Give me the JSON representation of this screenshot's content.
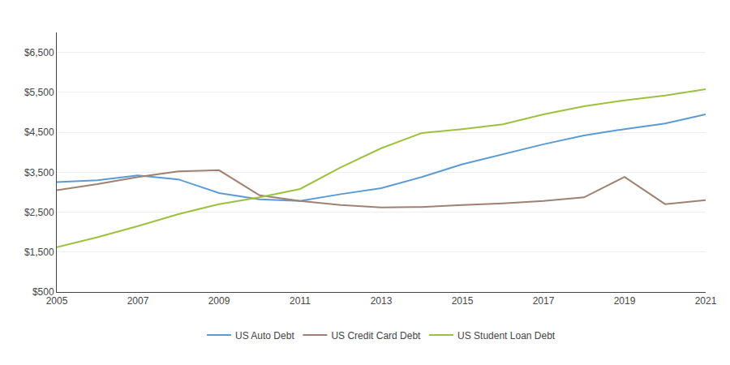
{
  "chart_data": {
    "type": "line",
    "x": [
      2005,
      2006,
      2007,
      2008,
      2009,
      2010,
      2011,
      2012,
      2013,
      2014,
      2015,
      2016,
      2017,
      2018,
      2019,
      2020,
      2021
    ],
    "series": [
      {
        "name": "US Auto Debt",
        "color": "#5b9bd5",
        "values": [
          3250,
          3300,
          3420,
          3320,
          2980,
          2820,
          2780,
          2950,
          3100,
          3380,
          3700,
          3950,
          4200,
          4420,
          4580,
          4720,
          4950
        ]
      },
      {
        "name": "US Credit Card Debt",
        "color": "#a08070",
        "values": [
          3050,
          3200,
          3380,
          3520,
          3550,
          2920,
          2780,
          2680,
          2620,
          2630,
          2680,
          2720,
          2780,
          2870,
          3380,
          2700,
          2800
        ]
      },
      {
        "name": "US Student Loan Debt",
        "color": "#9dc13e",
        "values": [
          1620,
          1870,
          2150,
          2450,
          2700,
          2870,
          3080,
          3620,
          4100,
          4480,
          4580,
          4700,
          4950,
          5150,
          5300,
          5420,
          5580
        ]
      }
    ],
    "xlim": [
      2005,
      2021
    ],
    "ylim": [
      500,
      7000
    ],
    "xticks": [
      2005,
      2007,
      2009,
      2011,
      2013,
      2015,
      2017,
      2019,
      2021
    ],
    "yticks": [
      {
        "value": 500,
        "label": "$500"
      },
      {
        "value": 1500,
        "label": "$1,500"
      },
      {
        "value": 2500,
        "label": "$2,500"
      },
      {
        "value": 3500,
        "label": "$3,500"
      },
      {
        "value": 4500,
        "label": "$4,500"
      },
      {
        "value": 5500,
        "label": "$5,500"
      },
      {
        "value": 6500,
        "label": "$6,500"
      }
    ],
    "grid": "y",
    "legend": "bottom"
  }
}
